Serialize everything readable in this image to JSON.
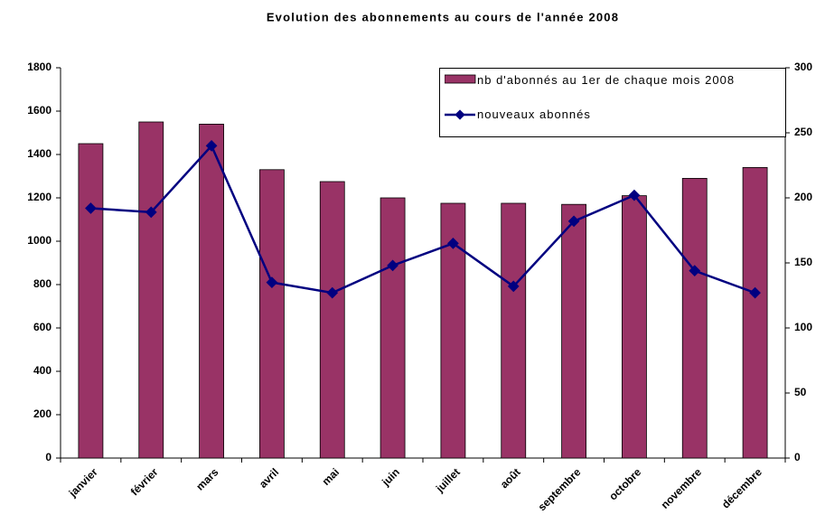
{
  "chart_data": {
    "type": "bar",
    "title": "Evolution des abonnements au cours de l'année 2008",
    "categories": [
      "janvier",
      "février",
      "mars",
      "avril",
      "mai",
      "juin",
      "juillet",
      "août",
      "septembre",
      "octobre",
      "novembre",
      "décembre"
    ],
    "series": [
      {
        "name": "nb d'abonnés au 1er de chaque mois 2008",
        "type": "bar",
        "color": "#993366",
        "values": [
          1450,
          1550,
          1540,
          1330,
          1275,
          1200,
          1175,
          1175,
          1170,
          1210,
          1290,
          1340
        ]
      },
      {
        "name": "nouveaux abonnés",
        "type": "line",
        "axis": "y2",
        "color": "#000080",
        "values": [
          192,
          189,
          240,
          135,
          127,
          148,
          165,
          132,
          182,
          202,
          144,
          127
        ]
      }
    ],
    "ylim": [
      0,
      1800
    ],
    "yticks": [
      0,
      200,
      400,
      600,
      800,
      1000,
      1200,
      1400,
      1600,
      1800
    ],
    "y2lim": [
      0,
      300
    ],
    "y2ticks": [
      0,
      50,
      100,
      150,
      200,
      250,
      300
    ],
    "grid": false,
    "legend": "top-right"
  }
}
